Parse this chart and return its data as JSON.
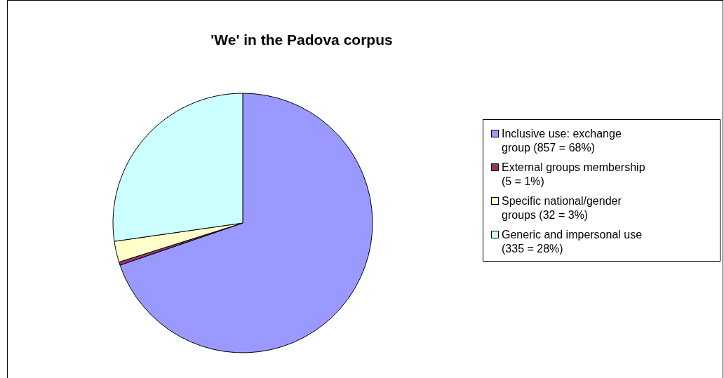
{
  "chart_data": {
    "type": "pie",
    "title": "'We' in the Padova corpus",
    "categories": [
      "Inclusive use: exchange group (857 = 68%)",
      "External groups membership (5 = 1%)",
      "Specific national/gender groups (32 = 3%)",
      "Generic and impersonal use (335 = 28%)"
    ],
    "values": [
      857,
      5,
      32,
      335
    ],
    "colors": [
      "#9999ff",
      "#993366",
      "#ffffcc",
      "#ccffff"
    ],
    "legend": "right"
  }
}
